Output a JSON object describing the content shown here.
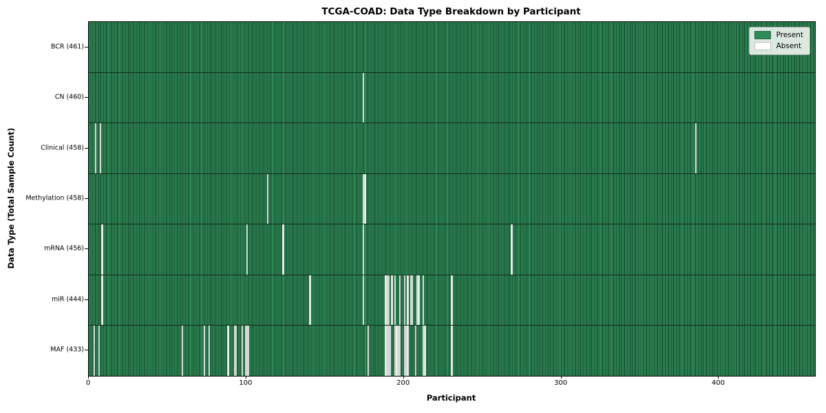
{
  "title": "TCGA-COAD: Data Type Breakdown by Participant",
  "chart_data": {
    "type": "heatmap",
    "title": "TCGA-COAD: Data Type Breakdown by Participant",
    "xlabel": "Participant",
    "ylabel": "Data Type (Total Sample Count)",
    "xlim": [
      0,
      461
    ],
    "x_ticks": [
      0,
      100,
      200,
      300,
      400
    ],
    "n_participants": 461,
    "grid": false,
    "legend": {
      "position": "upper right",
      "entries": [
        {
          "label": "Present",
          "color": "#2e8b57"
        },
        {
          "label": "Absent",
          "color": "#ffffff"
        }
      ]
    },
    "colors": {
      "present": "#2e8b57",
      "absent": "#ffffff",
      "cell_edge": "#143d27",
      "row_separator": "#10291b"
    },
    "rows": [
      {
        "data_type": "BCR",
        "label": "BCR (461)",
        "present_count": 461,
        "absent_count": 0,
        "absent_participants": []
      },
      {
        "data_type": "CN",
        "label": "CN (460)",
        "present_count": 460,
        "absent_count": 1,
        "absent_participants": [
          174
        ]
      },
      {
        "data_type": "Clinical",
        "label": "Clinical (458)",
        "present_count": 458,
        "absent_count": 3,
        "absent_participants": [
          4,
          7,
          385
        ]
      },
      {
        "data_type": "Methylation",
        "label": "Methylation (458)",
        "present_count": 458,
        "absent_count": 3,
        "absent_participants": [
          113,
          174,
          175
        ]
      },
      {
        "data_type": "mRNA",
        "label": "mRNA (456)",
        "present_count": 456,
        "absent_count": 5,
        "absent_participants": [
          8,
          100,
          123,
          174,
          268
        ]
      },
      {
        "data_type": "miR",
        "label": "miR (444)",
        "present_count": 444,
        "absent_count": 17,
        "absent_participants": [
          8,
          140,
          174,
          188,
          189,
          190,
          192,
          194,
          197,
          200,
          202,
          204,
          205,
          208,
          209,
          212,
          230
        ]
      },
      {
        "data_type": "MAF",
        "label": "MAF (433)",
        "present_count": 433,
        "absent_count": 28,
        "absent_participants": [
          3,
          6,
          59,
          73,
          76,
          88,
          92,
          93,
          97,
          99,
          100,
          101,
          177,
          188,
          189,
          190,
          191,
          194,
          195,
          196,
          197,
          200,
          201,
          202,
          207,
          212,
          213,
          230
        ]
      }
    ]
  }
}
